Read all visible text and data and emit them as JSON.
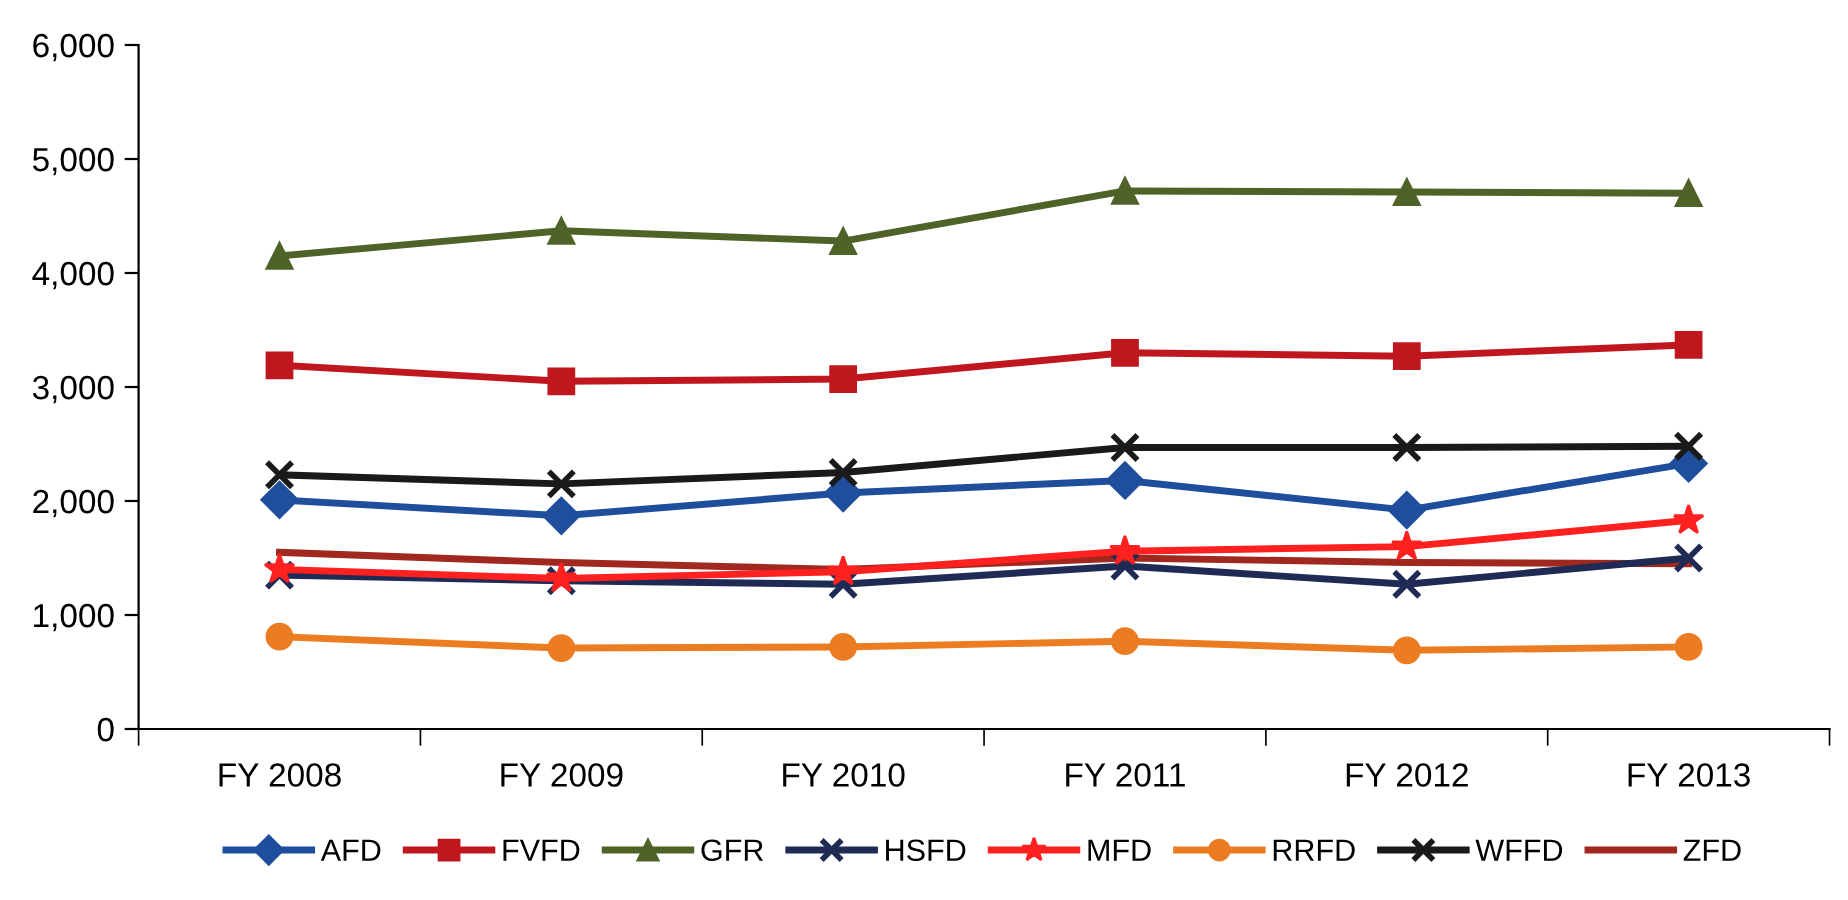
{
  "chart_data": {
    "type": "line",
    "categories": [
      "FY 2008",
      "FY 2009",
      "FY 2010",
      "FY 2011",
      "FY 2012",
      "FY 2013"
    ],
    "ylim": [
      0,
      6000
    ],
    "yticks": [
      {
        "value": 0,
        "label": "0"
      },
      {
        "value": 1000,
        "label": "1,000"
      },
      {
        "value": 2000,
        "label": "2,000"
      },
      {
        "value": 3000,
        "label": "3,000"
      },
      {
        "value": 4000,
        "label": "4,000"
      },
      {
        "value": 5000,
        "label": "5,000"
      },
      {
        "value": 6000,
        "label": "6,000"
      }
    ],
    "grid": false,
    "legend": "bottom",
    "line_style": "solid",
    "series": [
      {
        "name": "AFD",
        "color": "#1f4e9c",
        "marker": "diamond",
        "values": [
          2010,
          1870,
          2070,
          2180,
          1920,
          2330
        ]
      },
      {
        "name": "FVFD",
        "color": "#c0171f",
        "marker": "square",
        "values": [
          3190,
          3050,
          3070,
          3300,
          3270,
          3370
        ]
      },
      {
        "name": "GFR",
        "color": "#4f6228",
        "marker": "triangle",
        "values": [
          4150,
          4370,
          4280,
          4720,
          4710,
          4700
        ]
      },
      {
        "name": "HSFD",
        "color": "#1f2a55",
        "marker": "cross",
        "values": [
          1350,
          1300,
          1270,
          1430,
          1270,
          1500
        ]
      },
      {
        "name": "MFD",
        "color": "#ff2020",
        "marker": "star",
        "values": [
          1400,
          1320,
          1380,
          1560,
          1600,
          1830
        ]
      },
      {
        "name": "RRFD",
        "color": "#ec7c22",
        "marker": "circle",
        "values": [
          810,
          710,
          720,
          770,
          690,
          720
        ]
      },
      {
        "name": "WFFD",
        "color": "#1a1a1a",
        "marker": "cross",
        "values": [
          2230,
          2150,
          2250,
          2470,
          2470,
          2480
        ]
      },
      {
        "name": "ZFD",
        "color": "#a0281e",
        "marker": "none",
        "values": [
          1550,
          1460,
          1400,
          1500,
          1460,
          1450
        ]
      }
    ]
  }
}
